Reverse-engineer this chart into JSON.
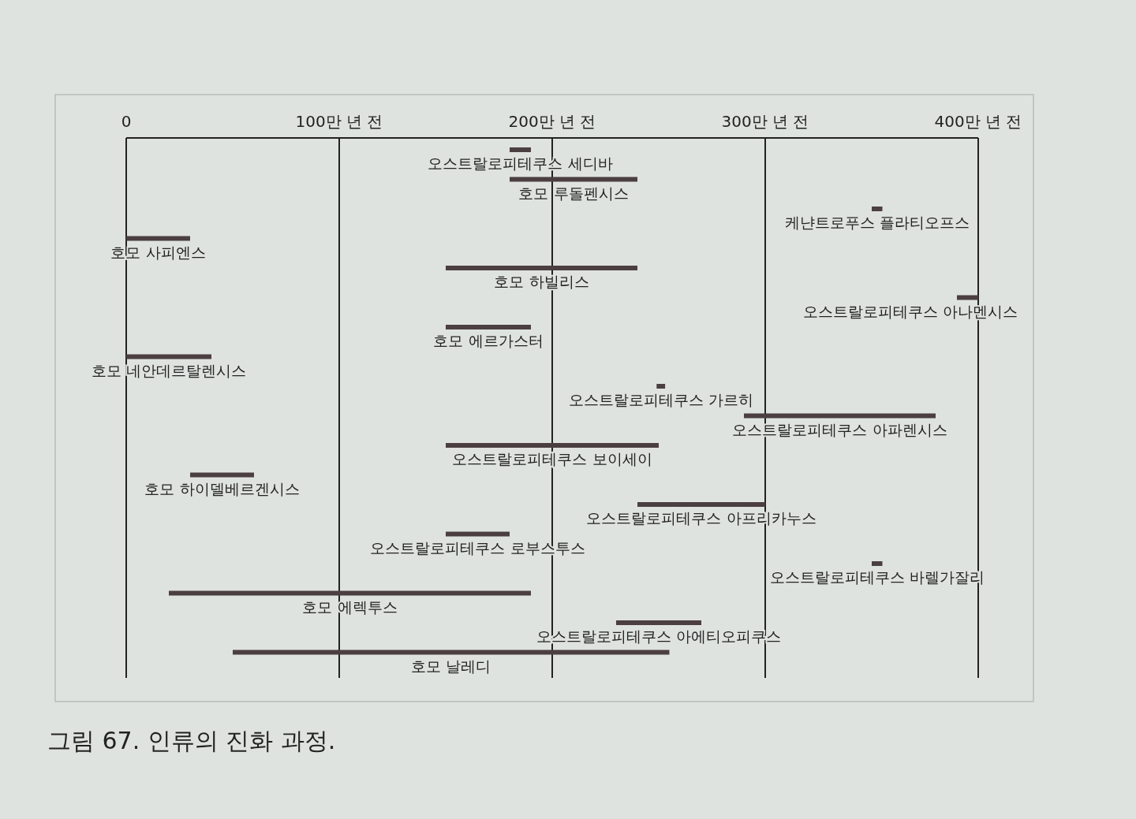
{
  "chart_data": {
    "type": "bar",
    "orientation": "horizontal",
    "categories": [
      "오스트랄로피테쿠스 세디바",
      "호모 루돌펜시스",
      "케냔트로푸스 플라티오프스",
      "호모 사피엔스",
      "호모 하빌리스",
      "오스트랄로피테쿠스 아나멘시스",
      "호모 에르가스터",
      "호모 네안데르탈렌시스",
      "오스트랄로피테쿠스 가르히",
      "오스트랄로피테쿠스 아파렌시스",
      "오스트랄로피테쿠스 보이세이",
      "호모 하이델베르겐시스",
      "오스트랄로피테쿠스 아프리카누스",
      "오스트랄로피테쿠스 로부스투스",
      "오스트랄로피테쿠스 바렐가잘리",
      "호모 에렉투스",
      "오스트랄로피테쿠스 아에티오피쿠스",
      "호모 날레디"
    ],
    "base": [
      180,
      180,
      350,
      0,
      150,
      390,
      150,
      0,
      249,
      290,
      150,
      30,
      240,
      150,
      350,
      20,
      230,
      50
    ],
    "values": [
      10,
      60,
      5,
      30,
      90,
      10,
      40,
      40,
      4,
      90,
      100,
      30,
      60,
      30,
      5,
      170,
      40,
      205
    ],
    "color": "#4b3f42",
    "xlim": [
      0,
      400
    ],
    "xticks": [
      0,
      {
        "value": 100,
        "label": "100만 년 전"
      },
      {
        "value": 200,
        "label": "200만 년 전"
      },
      {
        "value": 300,
        "label": "300만 년 전"
      },
      {
        "value": 400,
        "label": "400만 년 전"
      }
    ],
    "grid": "x",
    "annotations": [
      "그림 67. 인류의 진화 과정."
    ]
  }
}
